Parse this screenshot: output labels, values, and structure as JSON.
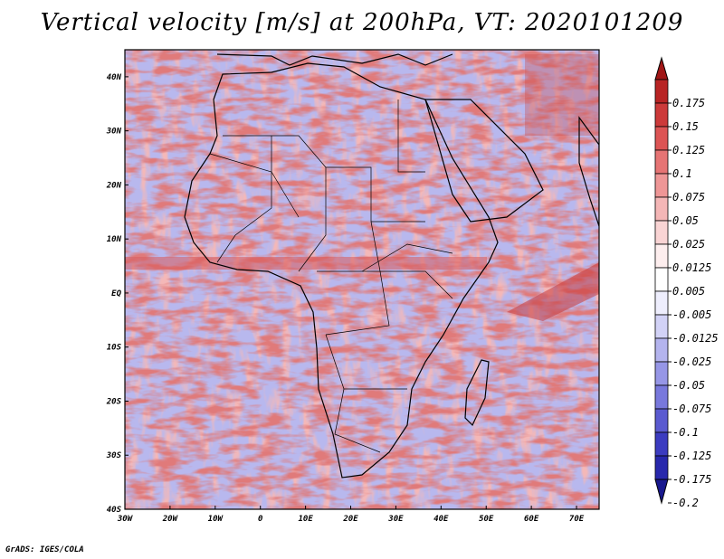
{
  "title": "Vertical velocity [m/s] at 200hPa, VT: 2020101209",
  "credit": "GrADS: IGES/COLA",
  "map": {
    "lon_range": [
      -30,
      75
    ],
    "lat_range": [
      -40,
      45
    ],
    "lon_ticks": [
      {
        "value": -30,
        "label": "30W"
      },
      {
        "value": -20,
        "label": "20W"
      },
      {
        "value": -10,
        "label": "10W"
      },
      {
        "value": 0,
        "label": "0"
      },
      {
        "value": 10,
        "label": "10E"
      },
      {
        "value": 20,
        "label": "20E"
      },
      {
        "value": 30,
        "label": "30E"
      },
      {
        "value": 40,
        "label": "40E"
      },
      {
        "value": 50,
        "label": "50E"
      },
      {
        "value": 60,
        "label": "60E"
      },
      {
        "value": 70,
        "label": "70E"
      }
    ],
    "lat_ticks": [
      {
        "value": 40,
        "label": "40N"
      },
      {
        "value": 30,
        "label": "30N"
      },
      {
        "value": 20,
        "label": "20N"
      },
      {
        "value": 10,
        "label": "10N"
      },
      {
        "value": 0,
        "label": "EQ"
      },
      {
        "value": -10,
        "label": "10S"
      },
      {
        "value": -20,
        "label": "20S"
      },
      {
        "value": -30,
        "label": "30S"
      },
      {
        "value": -40,
        "label": "40S"
      }
    ]
  },
  "colorbar": {
    "labels": [
      "0.175",
      "0.15",
      "0.125",
      "0.1",
      "0.075",
      "0.05",
      "0.025",
      "0.0125",
      "0.005",
      "-0.005",
      "-0.0125",
      "-0.025",
      "-0.05",
      "-0.075",
      "-0.1",
      "-0.125",
      "-0.175",
      "-0.2"
    ],
    "colors": [
      "#a01616",
      "#b82424",
      "#cc3a3a",
      "#dc5454",
      "#e67474",
      "#ee9696",
      "#f4b6b6",
      "#f9d4d4",
      "#fdeeee",
      "#ffffff",
      "#eeeefd",
      "#d2d2f6",
      "#b4b4ee",
      "#9696e6",
      "#7878dc",
      "#5a5ad0",
      "#3c3cc0",
      "#2828ac",
      "#18188e"
    ]
  }
}
